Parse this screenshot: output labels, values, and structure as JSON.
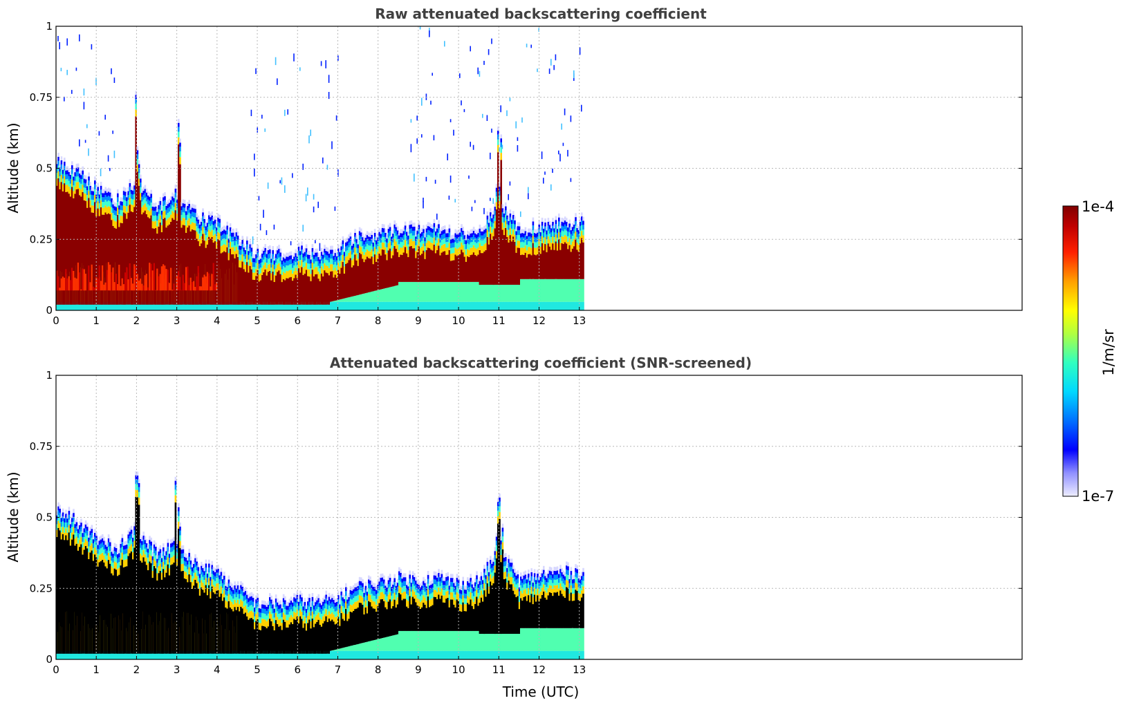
{
  "chart_data": [
    {
      "type": "heatmap",
      "title": "Raw attenuated backscattering coefficient",
      "xlabel": "",
      "ylabel": "Altitude (km)",
      "xlim": [
        0,
        24
      ],
      "ylim": [
        0,
        1
      ],
      "xticks": [
        "0",
        "1",
        "2",
        "3",
        "4",
        "5",
        "6",
        "7",
        "8",
        "9",
        "10",
        "11",
        "12",
        "13"
      ],
      "yticks": [
        "0",
        "0.25",
        "0.5",
        "0.75",
        "1"
      ],
      "grid": true,
      "data_extent_hours": [
        0,
        13.1
      ],
      "layer_top_km": [
        {
          "t": 0,
          "z": 0.52
        },
        {
          "t": 0.5,
          "z": 0.48
        },
        {
          "t": 1,
          "z": 0.42
        },
        {
          "t": 1.5,
          "z": 0.38
        },
        {
          "t": 2,
          "z": 0.45
        },
        {
          "t": 2.5,
          "z": 0.36
        },
        {
          "t": 3,
          "z": 0.4
        },
        {
          "t": 3.5,
          "z": 0.32
        },
        {
          "t": 4,
          "z": 0.3
        },
        {
          "t": 4.5,
          "z": 0.24
        },
        {
          "t": 5,
          "z": 0.19
        },
        {
          "t": 5.5,
          "z": 0.19
        },
        {
          "t": 6,
          "z": 0.2
        },
        {
          "t": 6.5,
          "z": 0.19
        },
        {
          "t": 7,
          "z": 0.21
        },
        {
          "t": 7.5,
          "z": 0.25
        },
        {
          "t": 8,
          "z": 0.26
        },
        {
          "t": 8.5,
          "z": 0.28
        },
        {
          "t": 9,
          "z": 0.27
        },
        {
          "t": 9.5,
          "z": 0.28
        },
        {
          "t": 10,
          "z": 0.26
        },
        {
          "t": 10.5,
          "z": 0.27
        },
        {
          "t": 11,
          "z": 0.38
        },
        {
          "t": 11.5,
          "z": 0.27
        },
        {
          "t": 12,
          "z": 0.29
        },
        {
          "t": 12.5,
          "z": 0.3
        },
        {
          "t": 13.1,
          "z": 0.3
        }
      ]
    },
    {
      "type": "heatmap",
      "title": "Attenuated backscattering coefficient (SNR-screened)",
      "xlabel": "Time (UTC)",
      "ylabel": "Altitude (km)",
      "xlim": [
        0,
        24
      ],
      "ylim": [
        0,
        1
      ],
      "xticks": [
        "0",
        "1",
        "2",
        "3",
        "4",
        "5",
        "6",
        "7",
        "8",
        "9",
        "10",
        "11",
        "12",
        "13"
      ],
      "yticks": [
        "0",
        "0.25",
        "0.5",
        "0.75",
        "1"
      ],
      "grid": true,
      "data_extent_hours": [
        0,
        13.1
      ]
    }
  ],
  "colorbar": {
    "label": "1/m/sr",
    "max_label": "1e-4",
    "min_label": "1e-7",
    "scale": "log",
    "colormap": [
      "#e8e8ff",
      "#a0a0ff",
      "#0000ff",
      "#0080ff",
      "#00e0ff",
      "#30ffd0",
      "#a0ff60",
      "#ffff00",
      "#ffa000",
      "#ff3000",
      "#c00000",
      "#800000"
    ]
  }
}
